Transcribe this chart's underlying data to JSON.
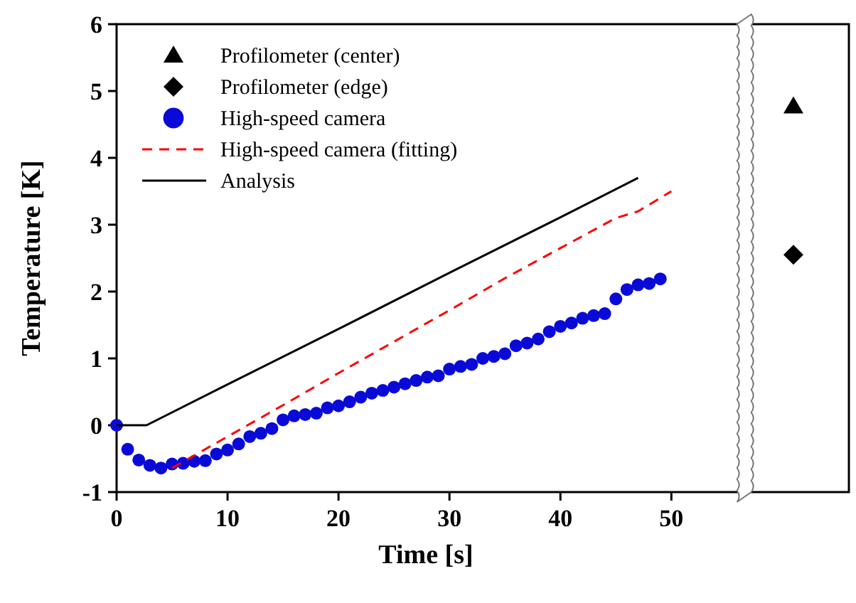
{
  "chart_data": {
    "type": "scatter",
    "xlabel": "Time [s]",
    "ylabel": "Temperature [K]",
    "xlim": [
      0,
      66
    ],
    "xticks": [
      0,
      10,
      20,
      30,
      40,
      50
    ],
    "ylim": [
      -1,
      6
    ],
    "yticks": [
      -1,
      0,
      1,
      2,
      3,
      4,
      5,
      6
    ],
    "grid": false,
    "legend": "top left",
    "series": [
      {
        "name": "Profilometer (center)",
        "marker": "triangle",
        "color": "#000000",
        "x": [
          61
        ],
        "values": [
          4.77
        ]
      },
      {
        "name": "Profilometer (edge)",
        "marker": "diamond",
        "color": "#000000",
        "x": [
          61
        ],
        "values": [
          2.55
        ]
      },
      {
        "name": "High-speed camera",
        "marker": "circle",
        "color": "#0a0ad8",
        "x": [
          0,
          1,
          2,
          3,
          4,
          5,
          6,
          7,
          8,
          9,
          10,
          11,
          12,
          13,
          14,
          15,
          16,
          17,
          18,
          19,
          20,
          21,
          22,
          23,
          24,
          25,
          26,
          27,
          28,
          29,
          30,
          31,
          32,
          33,
          34,
          35,
          36,
          37,
          38,
          39,
          40,
          41,
          42,
          43,
          44,
          45,
          46,
          47,
          48,
          49
        ],
        "values": [
          0,
          -0.36,
          -0.52,
          -0.6,
          -0.64,
          -0.58,
          -0.57,
          -0.54,
          -0.53,
          -0.43,
          -0.37,
          -0.28,
          -0.17,
          -0.12,
          -0.05,
          0.08,
          0.14,
          0.16,
          0.18,
          0.26,
          0.29,
          0.35,
          0.42,
          0.48,
          0.52,
          0.57,
          0.62,
          0.67,
          0.72,
          0.74,
          0.84,
          0.88,
          0.91,
          1.0,
          1.03,
          1.07,
          1.19,
          1.23,
          1.29,
          1.4,
          1.48,
          1.53,
          1.6,
          1.64,
          1.67,
          1.89,
          2.03,
          2.1,
          2.12,
          2.19
        ]
      },
      {
        "name": "High-speed camera (fitting)",
        "type": "line",
        "marker": "none",
        "line_style": "dashed",
        "color": "#ff0000",
        "x": [
          5,
          10,
          15,
          20,
          25,
          30,
          35,
          40,
          45,
          47,
          50
        ],
        "values": [
          -0.64,
          -0.17,
          0.3,
          0.78,
          1.25,
          1.72,
          2.2,
          2.65,
          3.1,
          3.2,
          3.5
        ]
      },
      {
        "name": "Analysis",
        "type": "line",
        "marker": "none",
        "line_style": "solid",
        "color": "#000000",
        "x": [
          0,
          2.7,
          10,
          20,
          30,
          40,
          47
        ],
        "values": [
          0,
          0,
          0.61,
          1.44,
          2.28,
          3.11,
          3.7
        ]
      }
    ]
  }
}
